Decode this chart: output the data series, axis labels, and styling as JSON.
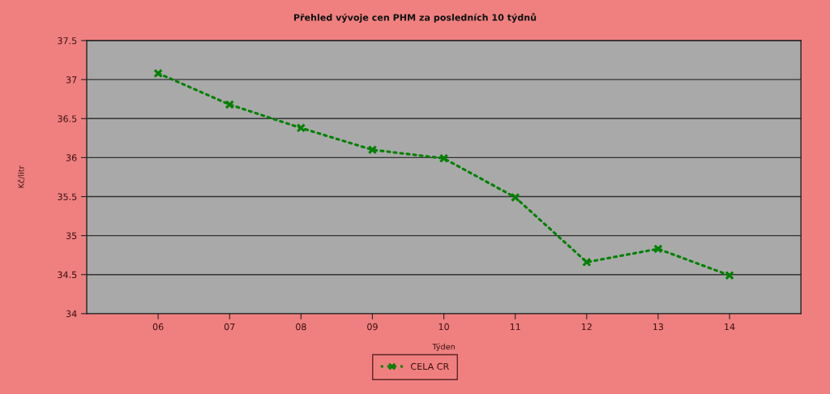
{
  "chart_data": {
    "type": "line",
    "title": "Přehled vývoje cen PHM za posledních 10 týdnů",
    "xlabel": "Týden",
    "ylabel": "Kč/litr",
    "categories": [
      "06",
      "07",
      "08",
      "09",
      "10",
      "11",
      "12",
      "13",
      "14"
    ],
    "series": [
      {
        "name": "CELA CR",
        "color": "#008000",
        "values": [
          37.08,
          36.68,
          36.38,
          36.1,
          35.99,
          35.49,
          34.66,
          34.83,
          34.49
        ]
      }
    ],
    "ylim": [
      34,
      37.5
    ],
    "yticks": [
      34,
      34.5,
      35,
      35.5,
      36,
      36.5,
      37,
      37.5
    ],
    "grid": "y",
    "legend": "bottom",
    "marker": "cross",
    "line_style": "dotted"
  }
}
